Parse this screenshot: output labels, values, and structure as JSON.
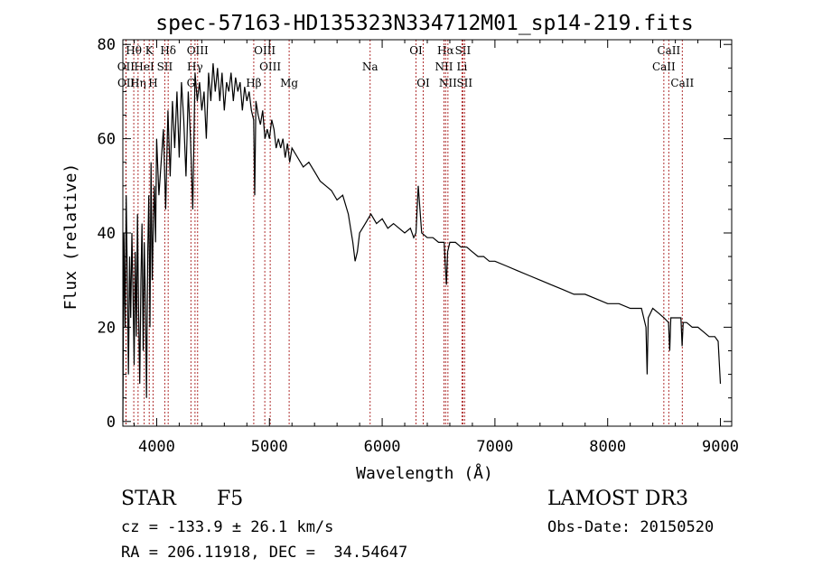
{
  "chart_data": {
    "type": "line",
    "title": "spec-57163-HD135323N334712M01_sp14-219.fits",
    "xlabel": "Wavelength (Å)",
    "ylabel": "Flux (relative)",
    "xlim": [
      3700,
      9100
    ],
    "ylim": [
      -1,
      81
    ],
    "xticks": [
      4000,
      5000,
      6000,
      7000,
      8000,
      9000
    ],
    "yticks": [
      0,
      20,
      40,
      60,
      80
    ],
    "grid": false,
    "series": [
      {
        "color": "#000000",
        "x": [
          3700,
          3710,
          3720,
          3730,
          3740,
          3750,
          3760,
          3770,
          3780,
          3790,
          3800,
          3810,
          3820,
          3830,
          3840,
          3850,
          3860,
          3870,
          3880,
          3890,
          3900,
          3910,
          3920,
          3930,
          3940,
          3950,
          3960,
          3970,
          3980,
          3990,
          4000,
          4020,
          4040,
          4060,
          4080,
          4100,
          4120,
          4140,
          4160,
          4180,
          4200,
          4220,
          4240,
          4260,
          4280,
          4300,
          4320,
          4340,
          4360,
          4380,
          4400,
          4420,
          4440,
          4460,
          4480,
          4500,
          4520,
          4540,
          4560,
          4580,
          4600,
          4620,
          4640,
          4660,
          4680,
          4700,
          4720,
          4740,
          4760,
          4780,
          4800,
          4820,
          4840,
          4860,
          4870,
          4880,
          4900,
          4920,
          4940,
          4960,
          4980,
          5000,
          5020,
          5040,
          5060,
          5080,
          5100,
          5120,
          5140,
          5160,
          5180,
          5200,
          5250,
          5300,
          5350,
          5400,
          5450,
          5500,
          5550,
          5600,
          5650,
          5700,
          5720,
          5740,
          5760,
          5780,
          5800,
          5850,
          5900,
          5950,
          6000,
          6050,
          6100,
          6150,
          6200,
          6250,
          6280,
          6300,
          6320,
          6350,
          6400,
          6450,
          6500,
          6550,
          6560,
          6570,
          6580,
          6600,
          6650,
          6700,
          6750,
          6800,
          6850,
          6900,
          6950,
          7000,
          7100,
          7200,
          7300,
          7400,
          7500,
          7600,
          7700,
          7800,
          7900,
          8000,
          8100,
          8200,
          8300,
          8340,
          8350,
          8360,
          8400,
          8450,
          8500,
          8540,
          8550,
          8560,
          8600,
          8650,
          8660,
          8670,
          8700,
          8750,
          8800,
          8850,
          8900,
          8950,
          8980,
          9000
        ],
        "y": [
          0,
          40,
          20,
          48,
          30,
          10,
          35,
          22,
          40,
          28,
          12,
          36,
          18,
          44,
          22,
          8,
          30,
          42,
          15,
          38,
          25,
          5,
          35,
          48,
          20,
          55,
          30,
          42,
          50,
          38,
          60,
          48,
          55,
          62,
          45,
          66,
          52,
          68,
          58,
          70,
          56,
          72,
          64,
          52,
          70,
          60,
          45,
          74,
          68,
          72,
          66,
          70,
          60,
          74,
          68,
          76,
          70,
          75,
          68,
          74,
          66,
          72,
          70,
          74,
          68,
          73,
          70,
          72,
          66,
          71,
          68,
          70,
          66,
          64,
          48,
          68,
          65,
          63,
          66,
          60,
          62,
          60,
          64,
          62,
          58,
          60,
          58,
          60,
          56,
          59,
          55,
          58,
          56,
          54,
          55,
          53,
          51,
          50,
          49,
          47,
          48,
          44,
          41,
          38,
          34,
          36,
          40,
          42,
          44,
          42,
          43,
          41,
          42,
          41,
          40,
          41,
          39,
          40,
          50,
          40,
          39,
          39,
          38,
          38,
          33,
          29,
          36,
          38,
          38,
          37,
          37,
          36,
          35,
          35,
          34,
          34,
          33,
          32,
          31,
          30,
          29,
          28,
          27,
          27,
          26,
          25,
          25,
          24,
          24,
          20,
          10,
          22,
          24,
          23,
          22,
          21,
          15,
          22,
          22,
          22,
          16,
          21,
          21,
          20,
          20,
          19,
          18,
          18,
          17,
          8
        ]
      }
    ],
    "lines": [
      {
        "label": "Hθ",
        "x": 3797,
        "row": 1
      },
      {
        "label": "OII",
        "x": 3727,
        "row": 2
      },
      {
        "label": "OII",
        "x": 3729,
        "row": 3
      },
      {
        "label": "Hη",
        "x": 3835,
        "row": 3
      },
      {
        "label": "K",
        "x": 3934,
        "row": 1
      },
      {
        "label": "H",
        "x": 3968,
        "row": 3
      },
      {
        "label": "HeI",
        "x": 3889,
        "row": 2
      },
      {
        "label": "SII",
        "x": 4072,
        "row": 2
      },
      {
        "label": "Hδ",
        "x": 4102,
        "row": 1
      },
      {
        "label": "OIII",
        "x": 4363,
        "row": 1
      },
      {
        "label": "Hγ",
        "x": 4340,
        "row": 2
      },
      {
        "label": "G",
        "x": 4304,
        "row": 3
      },
      {
        "label": "Hβ",
        "x": 4861,
        "row": 3
      },
      {
        "label": "OIII",
        "x": 4959,
        "row": 1
      },
      {
        "label": "OIII",
        "x": 5007,
        "row": 2
      },
      {
        "label": "Mg",
        "x": 5175,
        "row": 3
      },
      {
        "label": "Na",
        "x": 5893,
        "row": 2
      },
      {
        "label": "OI",
        "x": 6300,
        "row": 1
      },
      {
        "label": "OI",
        "x": 6364,
        "row": 3
      },
      {
        "label": "Hα",
        "x": 6563,
        "row": 1
      },
      {
        "label": "NII",
        "x": 6548,
        "row": 2
      },
      {
        "label": "NII",
        "x": 6583,
        "row": 3
      },
      {
        "label": "SII",
        "x": 6716,
        "row": 1
      },
      {
        "label": "Li",
        "x": 6708,
        "row": 2
      },
      {
        "label": "SII",
        "x": 6731,
        "row": 3
      },
      {
        "label": "CaII",
        "x": 8542,
        "row": 1
      },
      {
        "label": "CaII",
        "x": 8498,
        "row": 2
      },
      {
        "label": "CaII",
        "x": 8662,
        "row": 3
      }
    ]
  },
  "info": {
    "object_class": "STAR",
    "subclass": "F5",
    "survey": "LAMOST DR3",
    "redshift": "cz = -133.9 ± 26.1 km/s",
    "obs_date": "Obs-Date: 20150520",
    "coords": "RA = 206.11918, DEC =  34.54647"
  }
}
